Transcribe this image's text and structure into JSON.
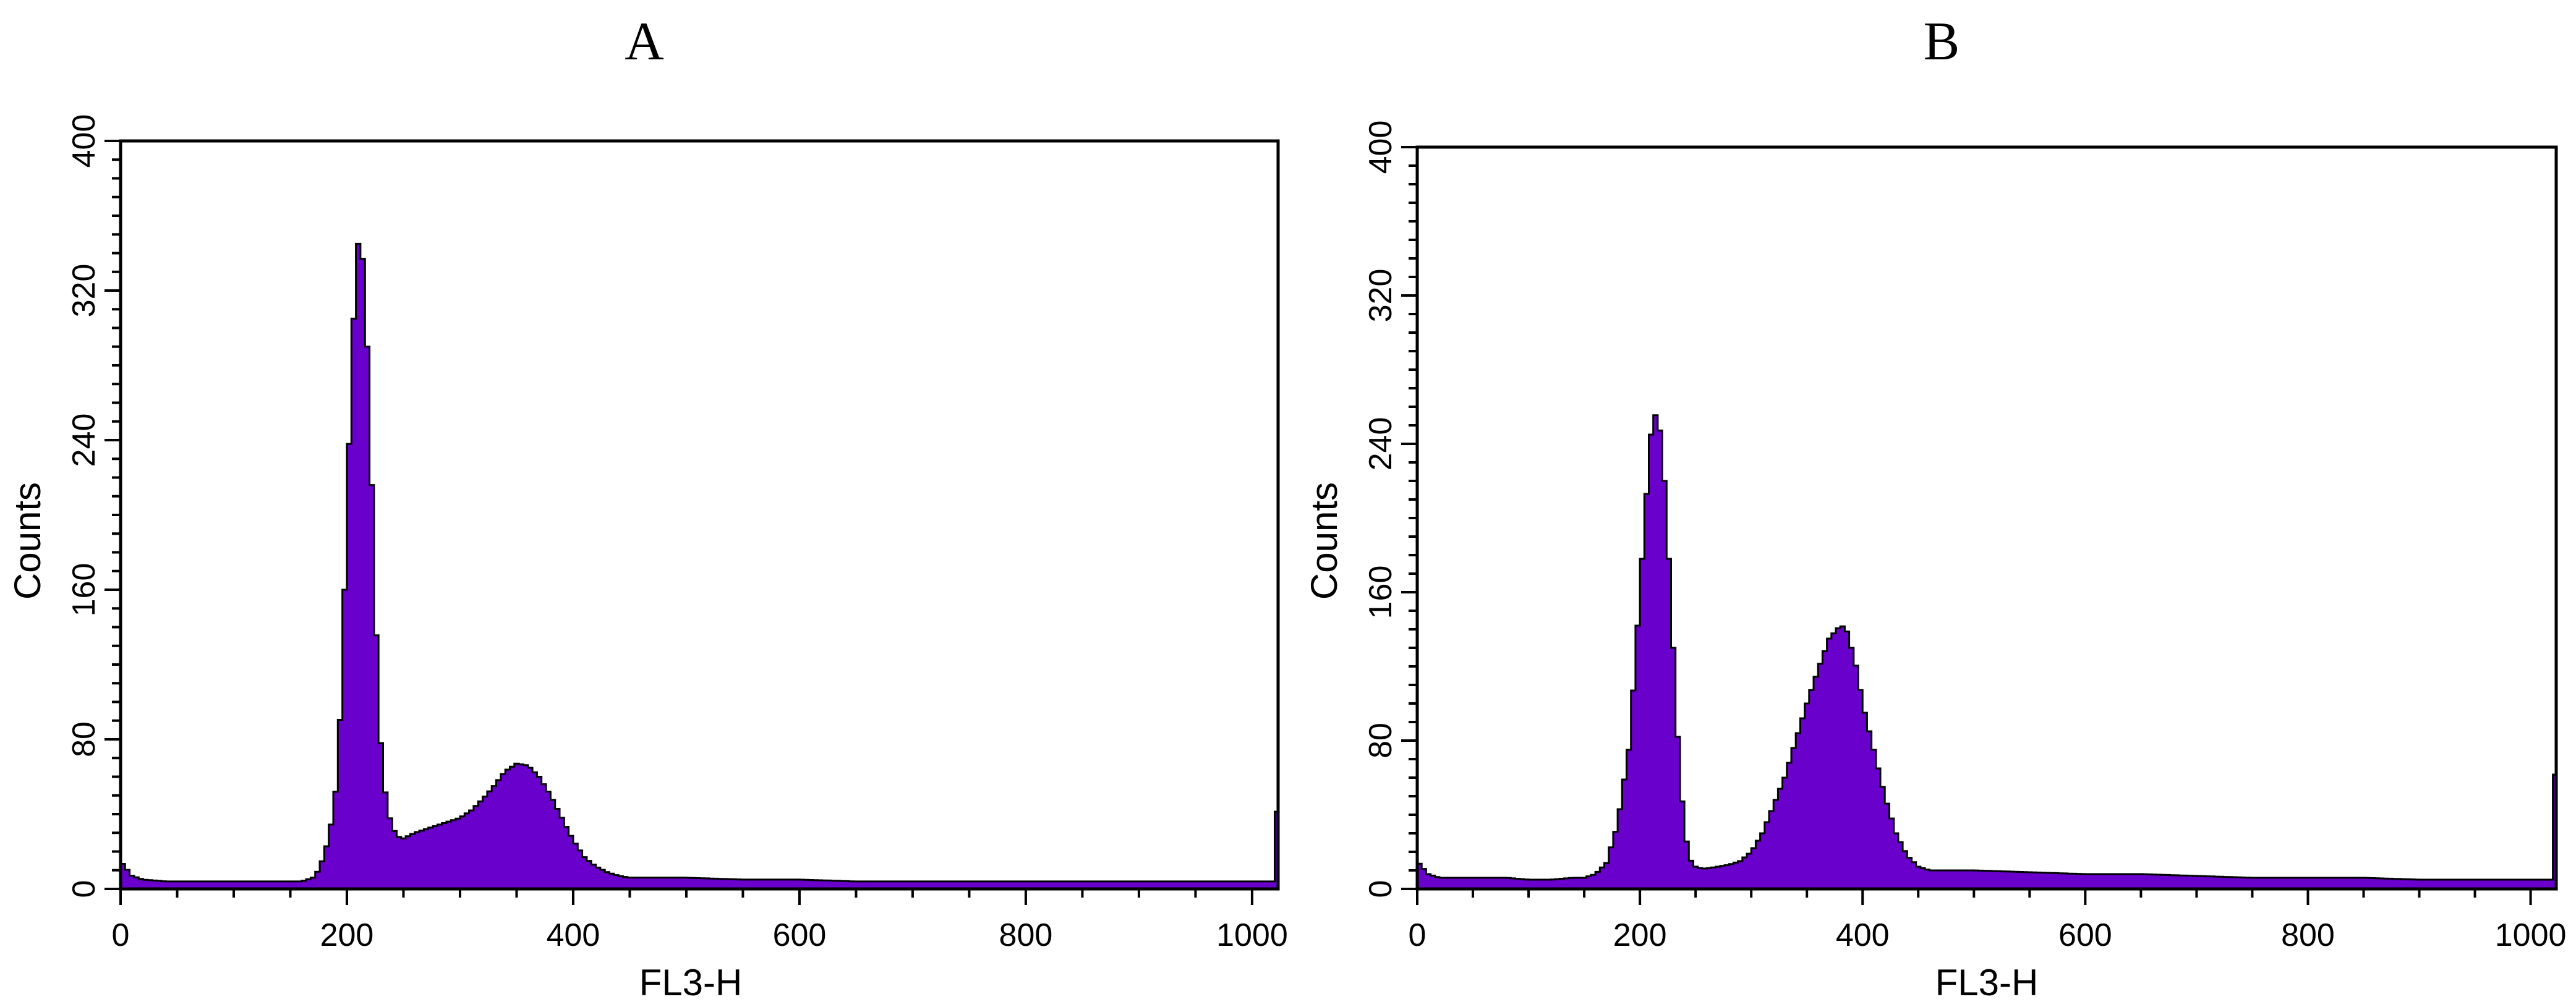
{
  "colors": {
    "fill": "#6a00cc",
    "outline": "#000000",
    "frame": "#000000"
  },
  "chart_data": [
    {
      "type": "area",
      "title": "A",
      "xlabel": "FL3-H",
      "ylabel": "Counts",
      "xlim": [
        0,
        1023
      ],
      "ylim": [
        0,
        400
      ],
      "xticks": [
        "0",
        "200",
        "400",
        "600",
        "800",
        "1000"
      ],
      "yticks": [
        "0",
        "80",
        "160",
        "240",
        "320",
        "400"
      ],
      "grid": false,
      "x": [
        0,
        10,
        20,
        40,
        60,
        80,
        100,
        120,
        140,
        160,
        170,
        175,
        180,
        185,
        190,
        195,
        200,
        205,
        210,
        215,
        220,
        225,
        230,
        235,
        240,
        245,
        250,
        260,
        270,
        280,
        290,
        300,
        310,
        320,
        330,
        340,
        350,
        360,
        370,
        380,
        390,
        400,
        410,
        420,
        430,
        440,
        450,
        460,
        500,
        550,
        600,
        650,
        700,
        750,
        800,
        850,
        900,
        950,
        1000,
        1010,
        1015,
        1020,
        1023
      ],
      "y": [
        15,
        7,
        5,
        4,
        4,
        4,
        4,
        4,
        4,
        4,
        6,
        10,
        18,
        30,
        52,
        100,
        200,
        295,
        345,
        335,
        260,
        150,
        78,
        45,
        33,
        28,
        27,
        30,
        32,
        34,
        36,
        38,
        42,
        48,
        55,
        63,
        67,
        66,
        60,
        50,
        38,
        26,
        17,
        12,
        9,
        7,
        6,
        6,
        6,
        5,
        5,
        4,
        4,
        4,
        4,
        4,
        4,
        4,
        4,
        4,
        4,
        4,
        60
      ]
    },
    {
      "type": "area",
      "title": "B",
      "xlabel": "FL3-H",
      "ylabel": "Counts",
      "xlim": [
        0,
        1023
      ],
      "ylim": [
        0,
        400
      ],
      "xticks": [
        "0",
        "200",
        "400",
        "600",
        "800",
        "1000"
      ],
      "yticks": [
        "0",
        "80",
        "160",
        "240",
        "320",
        "400"
      ],
      "grid": false,
      "x": [
        0,
        10,
        20,
        40,
        60,
        80,
        100,
        120,
        140,
        150,
        160,
        170,
        180,
        190,
        195,
        200,
        205,
        210,
        215,
        220,
        225,
        230,
        235,
        240,
        245,
        250,
        255,
        260,
        270,
        280,
        290,
        300,
        310,
        320,
        330,
        340,
        350,
        360,
        370,
        380,
        385,
        390,
        395,
        400,
        410,
        420,
        430,
        440,
        450,
        460,
        470,
        500,
        550,
        600,
        650,
        700,
        750,
        800,
        850,
        900,
        950,
        1000,
        1010,
        1015,
        1020,
        1023
      ],
      "y": [
        15,
        8,
        6,
        6,
        6,
        6,
        5,
        5,
        6,
        6,
        8,
        14,
        35,
        75,
        115,
        160,
        205,
        245,
        258,
        240,
        190,
        130,
        70,
        32,
        16,
        12,
        11,
        11,
        12,
        13,
        15,
        20,
        30,
        45,
        60,
        80,
        100,
        118,
        135,
        142,
        141,
        130,
        118,
        100,
        75,
        50,
        30,
        18,
        12,
        10,
        10,
        10,
        9,
        8,
        8,
        7,
        6,
        6,
        6,
        5,
        5,
        5,
        5,
        5,
        5,
        90
      ]
    }
  ]
}
